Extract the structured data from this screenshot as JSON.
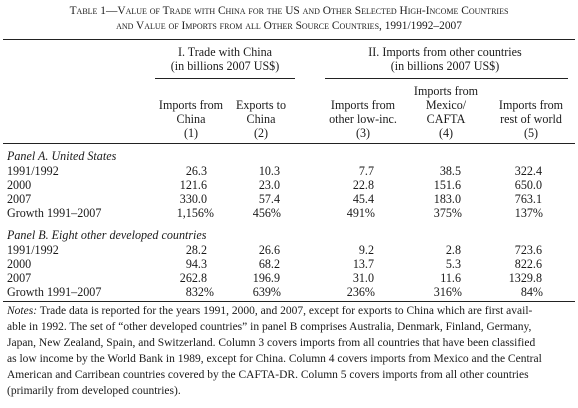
{
  "title": {
    "line1": "Table 1—Value of Trade with China for the US and Other Selected High-Income Countries",
    "line2": "and Value of Imports from all Other Source Countries, 1991/1992–2007"
  },
  "groups": {
    "g1": {
      "line1": "I. Trade with China",
      "line2": "(in billions 2007 US$)"
    },
    "g2": {
      "line1": "II. Imports from other countries",
      "line2": "(in billions 2007 US$)"
    }
  },
  "columns": [
    {
      "line1": "",
      "line2": "Imports from",
      "line3": "China",
      "num": "(1)"
    },
    {
      "line1": "",
      "line2": "Exports to",
      "line3": "China",
      "num": "(2)"
    },
    {
      "line1": "",
      "line2": "Imports from",
      "line3": "other low-inc.",
      "num": "(3)"
    },
    {
      "line1": "Imports from",
      "line2": "Mexico/",
      "line3": "CAFTA",
      "num": "(4)"
    },
    {
      "line1": "",
      "line2": "Imports from",
      "line3": "rest of world",
      "num": "(5)"
    }
  ],
  "panels": [
    {
      "title": "Panel A. United States",
      "rows": [
        {
          "label": "1991/1992",
          "values": [
            "26.3",
            "10.3",
            "7.7",
            "38.5",
            "322.4"
          ]
        },
        {
          "label": "2000",
          "values": [
            "121.6",
            "23.0",
            "22.8",
            "151.6",
            "650.0"
          ]
        },
        {
          "label": "2007",
          "values": [
            "330.0",
            "57.4",
            "45.4",
            "183.0",
            "763.1"
          ]
        },
        {
          "label": "Growth 1991–2007",
          "values": [
            "1,156%",
            "456%",
            "491%",
            "375%",
            "137%"
          ]
        }
      ]
    },
    {
      "title": "Panel B. Eight other developed countries",
      "rows": [
        {
          "label": "1991/1992",
          "values": [
            "28.2",
            "26.6",
            "9.2",
            "2.8",
            "723.6"
          ]
        },
        {
          "label": "2000",
          "values": [
            "94.3",
            "68.2",
            "13.7",
            "5.3",
            "822.6"
          ]
        },
        {
          "label": "2007",
          "values": [
            "262.8",
            "196.9",
            "31.0",
            "11.6",
            "1329.8"
          ]
        },
        {
          "label": "Growth 1991–2007",
          "values": [
            "832%",
            "639%",
            "236%",
            "316%",
            "84%"
          ]
        }
      ]
    }
  ],
  "notes": {
    "label": "Notes:",
    "line1": "Trade data is reported for the years 1991, 2000, and 2007, except for exports to China which are first avail-",
    "line2": "able in 1992. The set of “other developed countries” in panel B comprises Australia, Denmark, Finland, Germany,",
    "line3": "Japan, New Zealand, Spain, and Switzerland. Column 3 covers imports from all countries that have been classified",
    "line4": "as low income by the World Bank in 1989, except for China. Column 4 covers imports from Mexico and the Central",
    "line5": "American and Carribean countries covered by the CAFTA-DR. Column 5 covers imports from all other countries",
    "line6": "(primarily from developed countries)."
  }
}
